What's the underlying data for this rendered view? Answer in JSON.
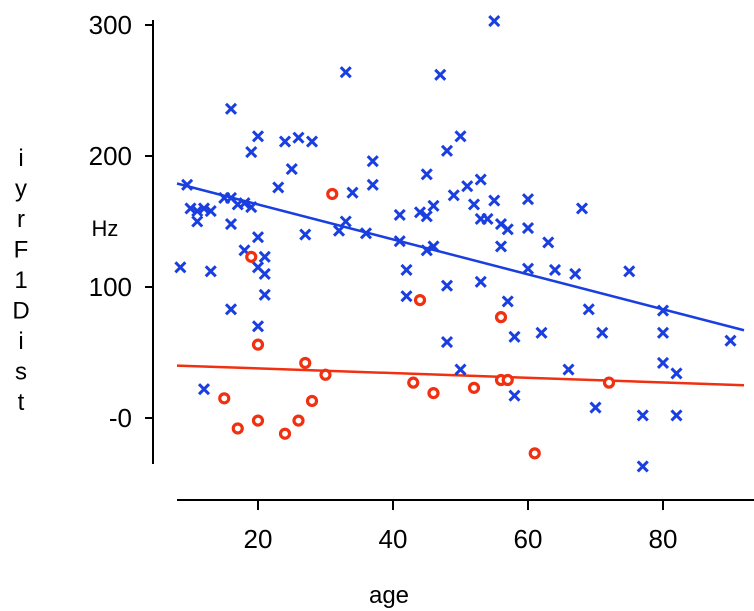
{
  "colors": {
    "series_a": "#1a3fe0",
    "series_b": "#f03010",
    "axis": "#000000"
  },
  "chart_data": {
    "type": "scatter",
    "title": "",
    "xlabel": "age",
    "ylabel": "iyrF1Dist",
    "yunit": "Hz",
    "xlim": [
      8,
      92
    ],
    "ylim": [
      -38,
      305
    ],
    "xticks": [
      20,
      40,
      60,
      80
    ],
    "yticks": [
      300,
      200,
      100,
      0
    ],
    "ytick_labels": [
      "300",
      "200",
      "100",
      "-0"
    ],
    "grid": false,
    "legend": "none",
    "series": [
      {
        "marker": "x",
        "color": "#1a3fe0",
        "points": [
          [
            8.5,
            115
          ],
          [
            9.5,
            178
          ],
          [
            10,
            160
          ],
          [
            11,
            158
          ],
          [
            11,
            150
          ],
          [
            12,
            160
          ],
          [
            12,
            22
          ],
          [
            13,
            158
          ],
          [
            13,
            112
          ],
          [
            15,
            168
          ],
          [
            16,
            168
          ],
          [
            16,
            148
          ],
          [
            16,
            236
          ],
          [
            16,
            83
          ],
          [
            17,
            163
          ],
          [
            18,
            128
          ],
          [
            18,
            164
          ],
          [
            19,
            161
          ],
          [
            19,
            203
          ],
          [
            20,
            215
          ],
          [
            20,
            138
          ],
          [
            20,
            70
          ],
          [
            20,
            115
          ],
          [
            21,
            123
          ],
          [
            21,
            110
          ],
          [
            21,
            94
          ],
          [
            23,
            176
          ],
          [
            24,
            211
          ],
          [
            25,
            190
          ],
          [
            26,
            214
          ],
          [
            27,
            140
          ],
          [
            28,
            211
          ],
          [
            32,
            143
          ],
          [
            33,
            150
          ],
          [
            33,
            264
          ],
          [
            34,
            172
          ],
          [
            36,
            141
          ],
          [
            37,
            196
          ],
          [
            37,
            178
          ],
          [
            41,
            135
          ],
          [
            41,
            155
          ],
          [
            42,
            113
          ],
          [
            42,
            93
          ],
          [
            44,
            157
          ],
          [
            45,
            154
          ],
          [
            45,
            186
          ],
          [
            45,
            128
          ],
          [
            46,
            162
          ],
          [
            46,
            131
          ],
          [
            47,
            262
          ],
          [
            48,
            101
          ],
          [
            48,
            58
          ],
          [
            48,
            204
          ],
          [
            49,
            170
          ],
          [
            50,
            215
          ],
          [
            50,
            37
          ],
          [
            51,
            177
          ],
          [
            52,
            163
          ],
          [
            53,
            182
          ],
          [
            53,
            152
          ],
          [
            53,
            104
          ],
          [
            54,
            152
          ],
          [
            55,
            303
          ],
          [
            55,
            166
          ],
          [
            56,
            131
          ],
          [
            56,
            148
          ],
          [
            57,
            144
          ],
          [
            57,
            89
          ],
          [
            58,
            62
          ],
          [
            58,
            17
          ],
          [
            60,
            167
          ],
          [
            60,
            145
          ],
          [
            60,
            114
          ],
          [
            62,
            65
          ],
          [
            63,
            134
          ],
          [
            64,
            113
          ],
          [
            66,
            37
          ],
          [
            67,
            110
          ],
          [
            68,
            160
          ],
          [
            69,
            83
          ],
          [
            70,
            8
          ],
          [
            71,
            65
          ],
          [
            75,
            112
          ],
          [
            77,
            2
          ],
          [
            77,
            -37
          ],
          [
            80,
            82
          ],
          [
            80,
            65
          ],
          [
            80,
            42
          ],
          [
            82,
            34
          ],
          [
            82,
            2
          ],
          [
            90,
            59
          ]
        ]
      },
      {
        "marker": "o",
        "color": "#f03010",
        "points": [
          [
            15,
            15
          ],
          [
            17,
            -8
          ],
          [
            19,
            123
          ],
          [
            20,
            56
          ],
          [
            20,
            -2
          ],
          [
            24,
            -12
          ],
          [
            26,
            -2
          ],
          [
            27,
            42
          ],
          [
            28,
            13
          ],
          [
            30,
            33
          ],
          [
            31,
            171
          ],
          [
            43,
            27
          ],
          [
            44,
            90
          ],
          [
            46,
            19
          ],
          [
            52,
            23
          ],
          [
            56,
            77
          ],
          [
            56,
            29
          ],
          [
            57,
            29
          ],
          [
            61,
            -27
          ],
          [
            72,
            27
          ]
        ]
      }
    ],
    "fit_lines": [
      {
        "color": "#1a3fe0",
        "x": [
          8,
          92
        ],
        "y": [
          179,
          67
        ]
      },
      {
        "color": "#f03010",
        "x": [
          8,
          92
        ],
        "y": [
          40,
          25
        ]
      }
    ]
  }
}
